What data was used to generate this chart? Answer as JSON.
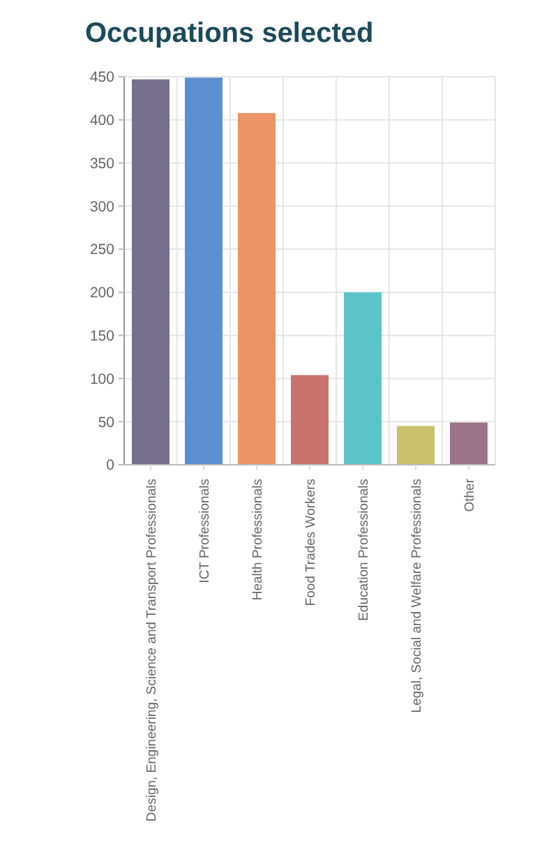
{
  "chart_data": {
    "type": "bar",
    "title": "Occupations selected",
    "categories": [
      "Design, Engineering, Science and Transport Professionals",
      "ICT Professionals",
      "Health Professionals",
      "Food Trades Workers",
      "Education Professionals",
      "Legal, Social and Welfare Professionals",
      "Other"
    ],
    "values": [
      447,
      449,
      408,
      104,
      200,
      45,
      49
    ],
    "colors": [
      "#76708e",
      "#5b8fd0",
      "#eb9467",
      "#c8736e",
      "#5bc4c8",
      "#c9c16b",
      "#9b7489"
    ],
    "ylim": [
      0,
      450
    ],
    "yticks": [
      0,
      50,
      100,
      150,
      200,
      250,
      300,
      350,
      400,
      450
    ],
    "grid": true
  }
}
